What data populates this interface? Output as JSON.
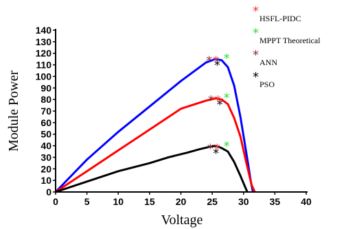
{
  "chart_data": {
    "type": "line",
    "xlabel": "Voltage",
    "ylabel": "Module Power",
    "xlim": [
      0,
      40
    ],
    "ylim": [
      0,
      140
    ],
    "xticks": [
      "0",
      "5",
      "10",
      "15",
      "20",
      "25",
      "30",
      "35",
      "40"
    ],
    "yticks": [
      "0",
      "10",
      "20",
      "30",
      "40",
      "50",
      "60",
      "70",
      "80",
      "90",
      "100",
      "110",
      "120",
      "130",
      "140"
    ],
    "legend_position": "top-right",
    "legend": [
      {
        "name": "HSFL-PIDC",
        "color": "#ff3333"
      },
      {
        "name": "MPPT Theoretical",
        "color": "#33dd33"
      },
      {
        "name": "ANN",
        "color": "#8b2e2e"
      },
      {
        "name": "PSO",
        "color": "#000000"
      }
    ],
    "series": [
      {
        "color": "#0000ff",
        "x": [
          0,
          5,
          10,
          15,
          20,
          24,
          25.5,
          26.5,
          27.5,
          28.5,
          29.5,
          30.5,
          31.2,
          31.5
        ],
        "y": [
          0,
          28,
          52,
          74,
          96,
          112,
          115,
          114,
          108,
          92,
          65,
          32,
          8,
          0
        ]
      },
      {
        "color": "#ff0000",
        "x": [
          0,
          5,
          10,
          15,
          20,
          24,
          25.5,
          26.5,
          27.5,
          28.5,
          29.5,
          30.5,
          31.3,
          31.8
        ],
        "y": [
          0,
          18,
          36,
          54,
          72,
          79,
          81,
          80,
          76,
          64,
          48,
          24,
          6,
          0
        ]
      },
      {
        "color": "#000000",
        "x": [
          0,
          5,
          10,
          15,
          18,
          21,
          23,
          24.5,
          25.5,
          26.5,
          27.5,
          28.5,
          29.5,
          30.2,
          30.6
        ],
        "y": [
          0,
          9,
          18,
          25,
          30,
          34,
          37,
          39,
          40,
          38,
          35,
          26,
          14,
          5,
          0
        ]
      }
    ],
    "markers": [
      {
        "x": 24.5,
        "y": 116,
        "color": "#8b2e2e"
      },
      {
        "x": 25.6,
        "y": 116,
        "color": "#ff3333"
      },
      {
        "x": 27.3,
        "y": 118,
        "color": "#33dd33"
      },
      {
        "x": 25.8,
        "y": 112,
        "color": "#000000"
      },
      {
        "x": 24.8,
        "y": 82,
        "color": "#8b2e2e"
      },
      {
        "x": 25.9,
        "y": 82,
        "color": "#ff3333"
      },
      {
        "x": 27.3,
        "y": 84,
        "color": "#33dd33"
      },
      {
        "x": 26.2,
        "y": 78,
        "color": "#000000"
      },
      {
        "x": 24.7,
        "y": 40,
        "color": "#8b2e2e"
      },
      {
        "x": 25.8,
        "y": 40,
        "color": "#ff3333"
      },
      {
        "x": 27.3,
        "y": 42,
        "color": "#33dd33"
      },
      {
        "x": 25.6,
        "y": 36,
        "color": "#000000"
      }
    ]
  }
}
